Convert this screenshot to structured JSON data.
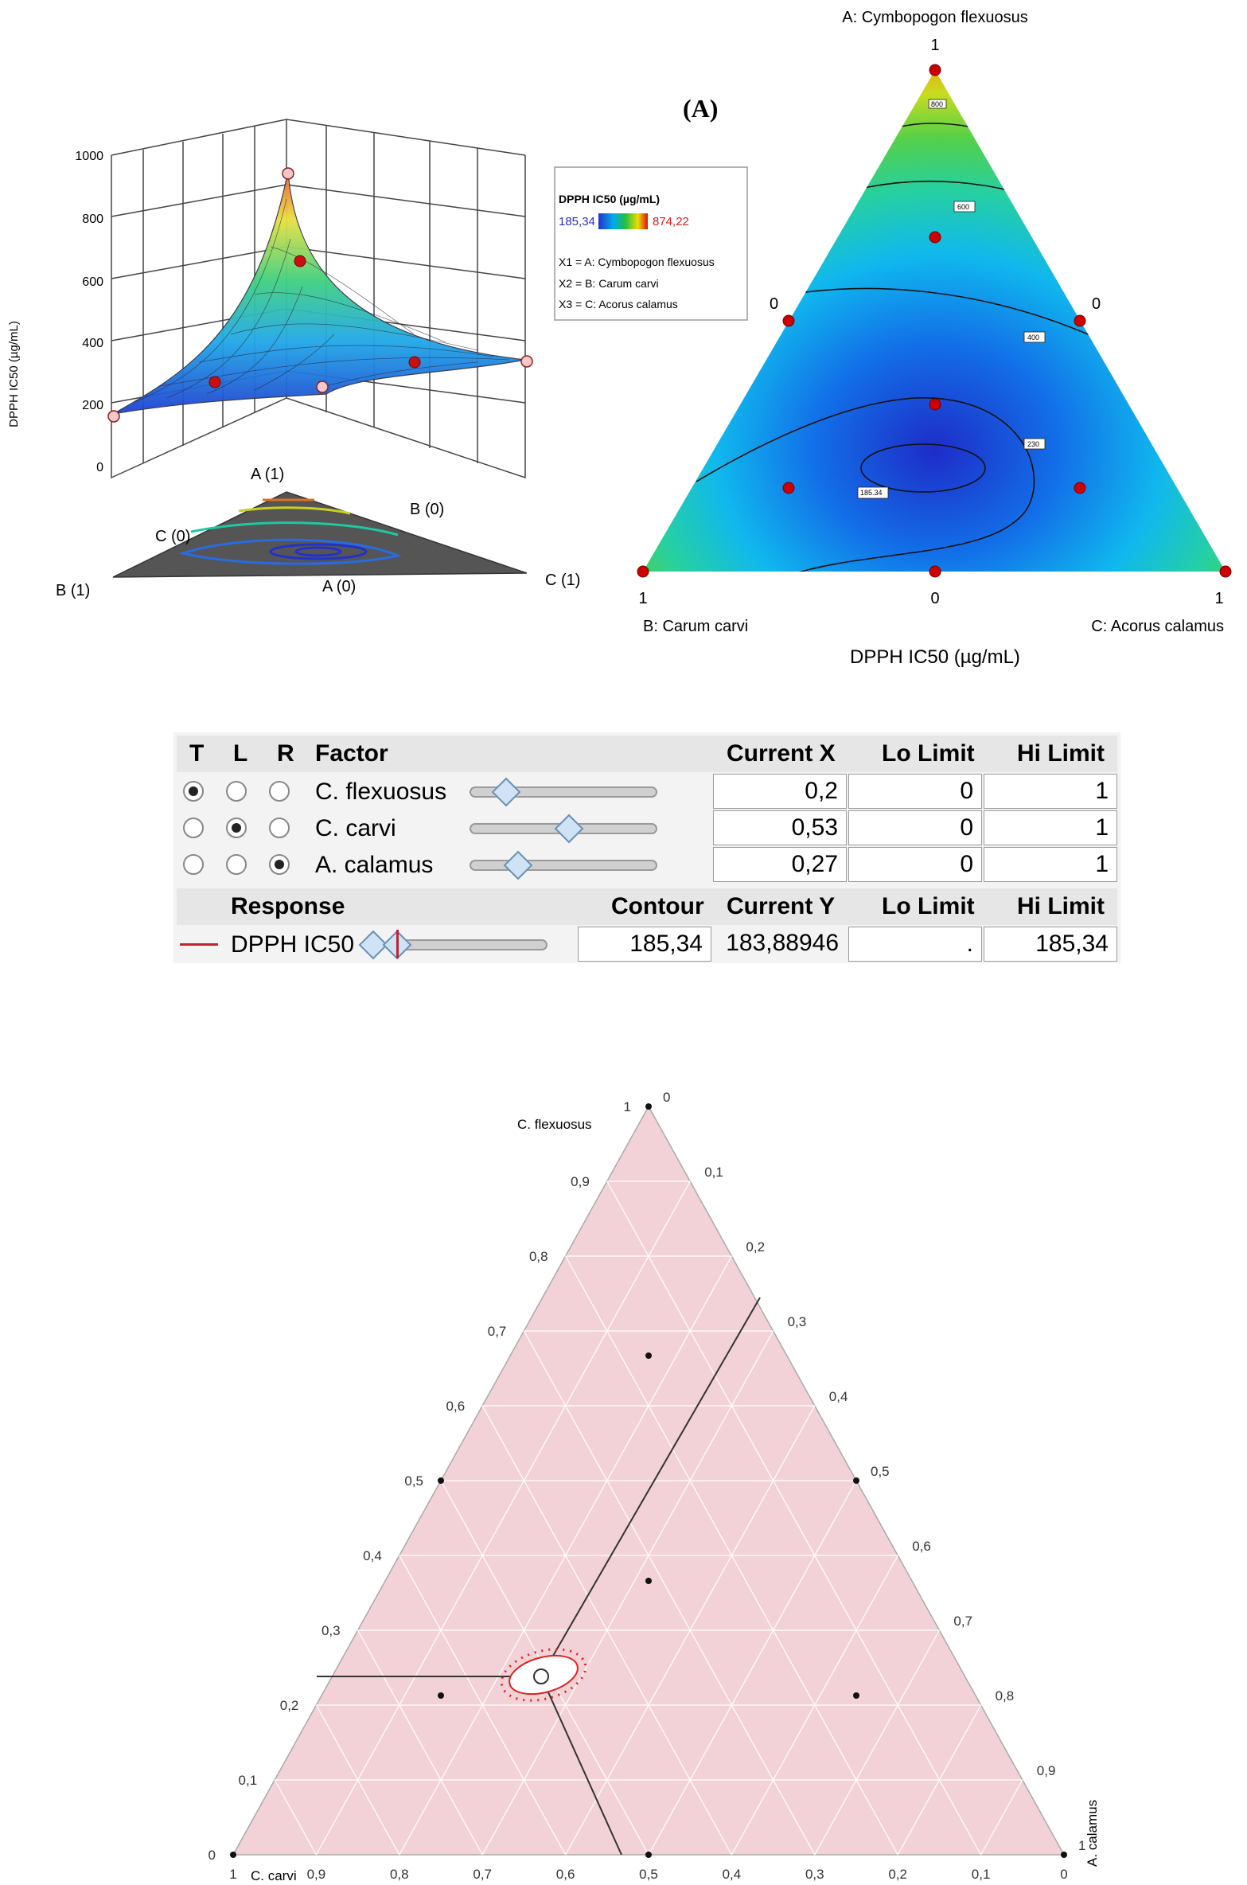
{
  "panel_label": "(A)",
  "surface3d": {
    "z_label": "DPPH IC50 (µg/mL)",
    "z_ticks": [
      "1000",
      "800",
      "600",
      "400",
      "200",
      "0"
    ],
    "vertex_labels": [
      "A (1)",
      "B (0)",
      "C (0)",
      "B (1)",
      "A (0)",
      "C (1)"
    ]
  },
  "legend": {
    "title": "DPPH IC50 (µg/mL)",
    "min_label": "185,34",
    "max_label": "874,22",
    "lines": [
      "X1 = A: Cymbopogon flexuosus",
      "X2 = B: Carum carvi",
      "X3 = C: Acorus calamus"
    ],
    "colors": {
      "min": "#2c2cc8",
      "max": "#d81f1f"
    }
  },
  "ternary_contour": {
    "top_label": "A: Cymbopogon flexuosus",
    "left_label": "B: Carum carvi",
    "right_label": "C: Acorus calamus",
    "xlabel": "DPPH IC50 (µg/mL)",
    "tick_labels": {
      "top": "1",
      "left_mid": "0",
      "right_mid": "0",
      "bottom_left": "1",
      "bottom_mid": "0",
      "bottom_right": "1"
    },
    "contour_labels": [
      "800",
      "600",
      "400",
      "230",
      "185.34"
    ]
  },
  "profiler": {
    "headers": {
      "t": "T",
      "l": "L",
      "r": "R",
      "factor": "Factor",
      "current_x": "Current X",
      "lo": "Lo Limit",
      "hi": "Hi Limit"
    },
    "factors": [
      {
        "name": "C. flexuosus",
        "current_x": "0,2",
        "lo": "0",
        "hi": "1",
        "selected": "T"
      },
      {
        "name": "C. carvi",
        "current_x": "0,53",
        "lo": "0",
        "hi": "1",
        "selected": "L"
      },
      {
        "name": "A. calamus",
        "current_x": "0,27",
        "lo": "0",
        "hi": "1",
        "selected": "R"
      }
    ],
    "response_headers": {
      "response": "Response",
      "contour": "Contour",
      "current_y": "Current Y",
      "lo": "Lo Limit",
      "hi": "Hi Limit"
    },
    "response": {
      "name": "DPPH IC50",
      "contour": "185,34",
      "current_y": "183,88946",
      "lo": ".",
      "hi": "185,34",
      "line_color": "#c8202e"
    }
  },
  "chart_data": [
    {
      "type": "scatter",
      "chart": "ternary mixture design response (contour + 3D surface)",
      "components": [
        "A: Cymbopogon flexuosus",
        "B: Carum carvi",
        "C: Acorus calamus"
      ],
      "response": "DPPH IC50 (µg/mL)",
      "response_range": [
        185.34,
        874.22
      ],
      "contour_levels": [
        800,
        600,
        400,
        230,
        185.34
      ],
      "design_points_ABC": [
        [
          1,
          0,
          0
        ],
        [
          0,
          1,
          0
        ],
        [
          0,
          0,
          1
        ],
        [
          0.5,
          0.5,
          0
        ],
        [
          0.5,
          0,
          0.5
        ],
        [
          0,
          0.5,
          0.5
        ],
        [
          0.6667,
          0.1667,
          0.1667
        ],
        [
          0.1667,
          0.6667,
          0.1667
        ],
        [
          0.1667,
          0.1667,
          0.6667
        ],
        [
          0.3333,
          0.3333,
          0.3333
        ]
      ],
      "zlim": [
        0,
        1000
      ]
    },
    {
      "type": "scatter",
      "chart": "ternary mixture profiler",
      "components": [
        "C. flexuosus",
        "C. carvi",
        "A. calamus"
      ],
      "axis_ticks": [
        "0",
        "0,1",
        "0,2",
        "0,3",
        "0,4",
        "0,5",
        "0,6",
        "0,7",
        "0,8",
        "0,9",
        "1"
      ],
      "current_point": {
        "C. flexuosus": 0.2,
        "C. carvi": 0.53,
        "A. calamus": 0.27
      },
      "contour": 185.34,
      "design_points": [
        [
          1,
          0,
          0
        ],
        [
          0.5,
          0.5,
          0
        ],
        [
          0.5,
          0,
          0.5
        ],
        [
          0,
          1,
          0
        ],
        [
          0,
          0.5,
          0.5
        ],
        [
          0,
          0,
          1
        ],
        [
          0.6667,
          0.1667,
          0.1667
        ],
        [
          0.3333,
          0.3333,
          0.3333
        ],
        [
          0.1667,
          0.6667,
          0.1667
        ],
        [
          0.1667,
          0.1667,
          0.6667
        ]
      ]
    }
  ]
}
